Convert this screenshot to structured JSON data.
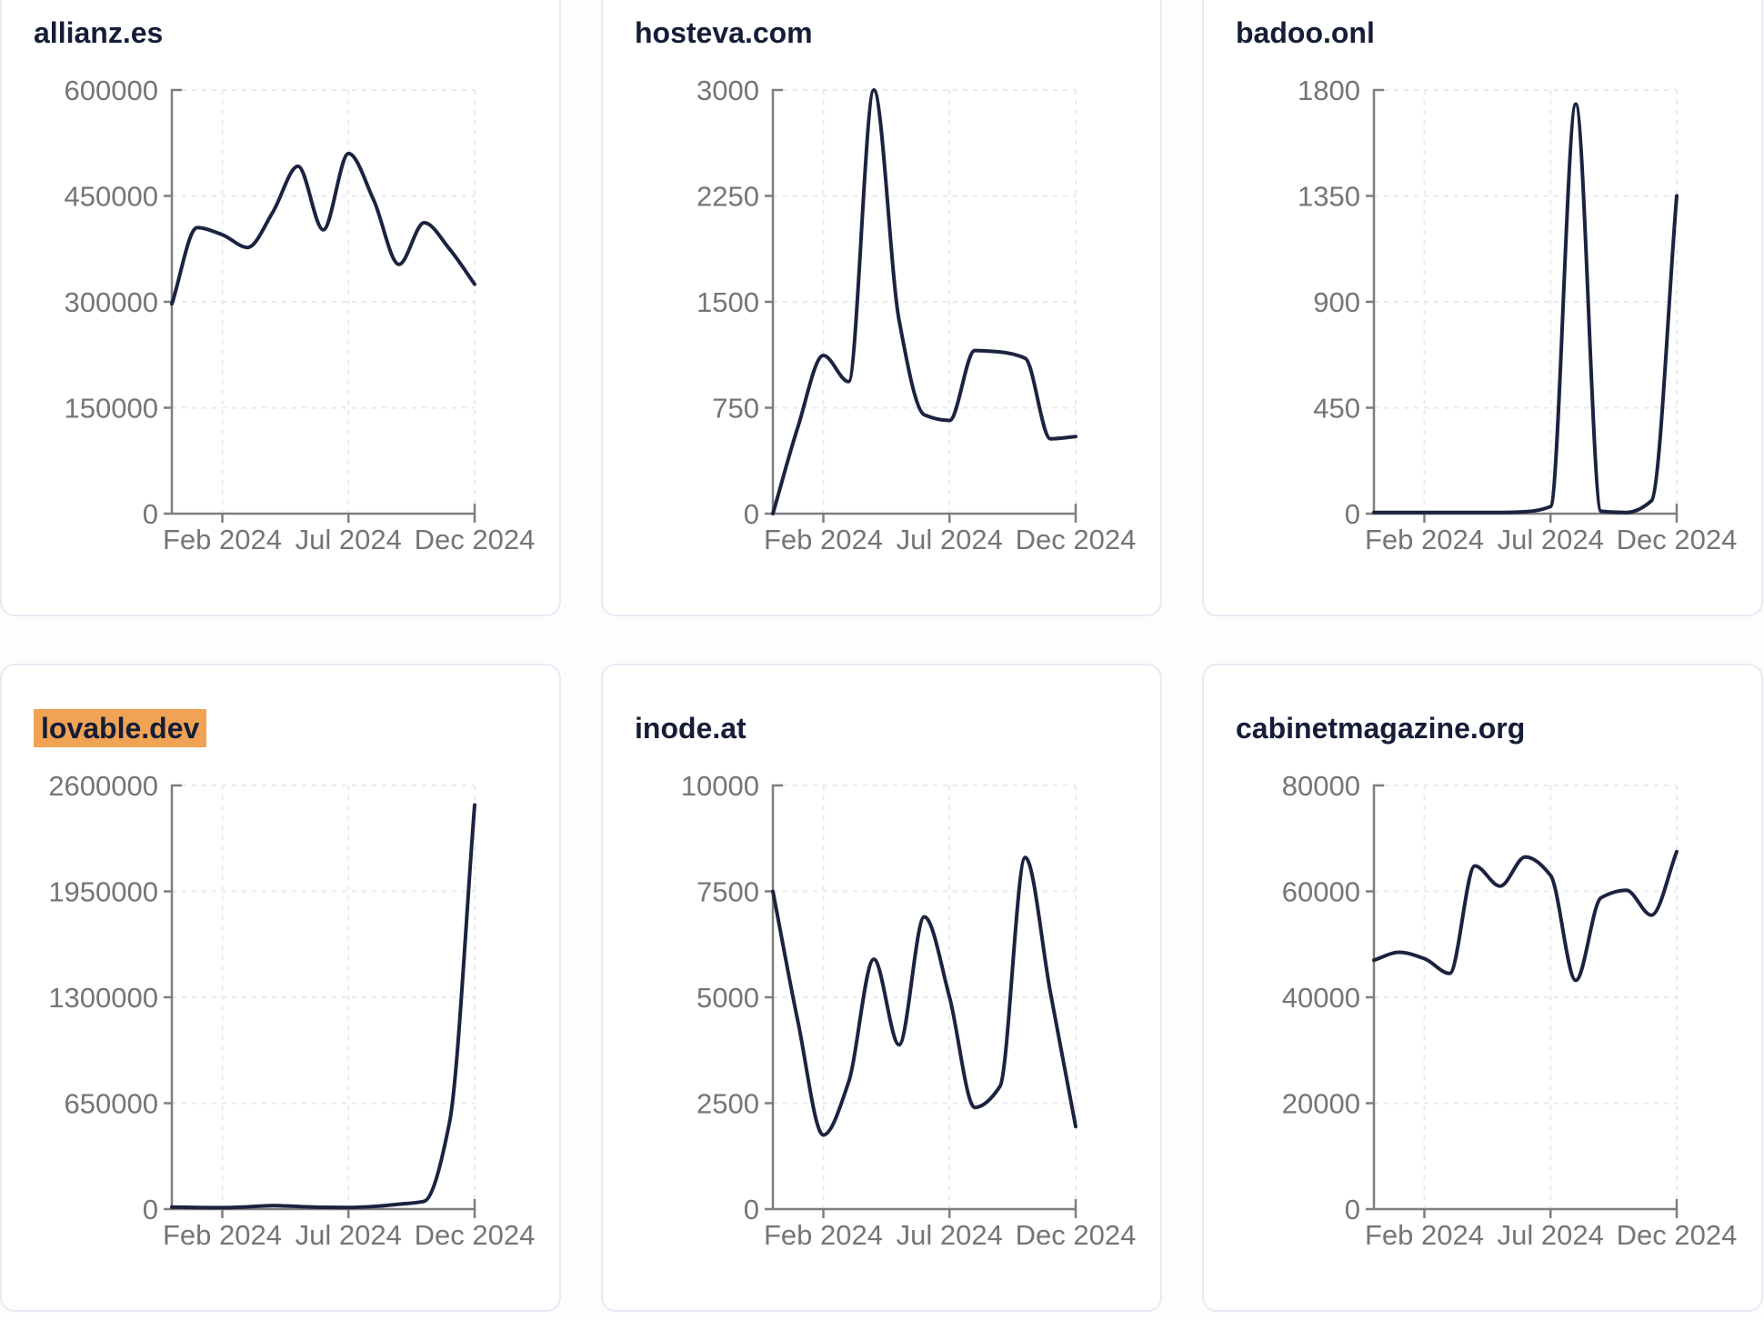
{
  "page": {
    "background": "#fdfdfe"
  },
  "style": {
    "card_background": "#ffffff",
    "card_border": "#eae9f4",
    "title_color": "#151d38",
    "highlight_color": "#f0a355",
    "line_color": "#1c2340",
    "axis_color": "#7e7e7e",
    "tick_label_color": "#757575",
    "grid_color": "#e9e9ee"
  },
  "chart_data": [
    {
      "type": "line",
      "title": "allianz.es",
      "highlighted": false,
      "x": [
        "Dec 2023",
        "Jan 2024",
        "Feb 2024",
        "Mar 2024",
        "Apr 2024",
        "May 2024",
        "Jun 2024",
        "Jul 2024",
        "Aug 2024",
        "Sep 2024",
        "Oct 2024",
        "Nov 2024",
        "Dec 2024"
      ],
      "values": [
        297000,
        405000,
        395000,
        377000,
        427000,
        492000,
        402000,
        510000,
        444000,
        353000,
        412000,
        375000,
        325000
      ],
      "ylim": [
        0,
        600000
      ],
      "y_ticks": [
        0,
        150000,
        300000,
        450000,
        600000
      ],
      "x_ticks": [
        {
          "label": "Feb 2024",
          "index": 2
        },
        {
          "label": "Jul 2024",
          "index": 7
        },
        {
          "label": "Dec 2024",
          "index": 12
        }
      ],
      "grid": true,
      "legend": null
    },
    {
      "type": "line",
      "title": "hosteva.com",
      "highlighted": false,
      "x": [
        "Dec 2023",
        "Jan 2024",
        "Feb 2024",
        "Mar 2024",
        "Apr 2024",
        "May 2024",
        "Jun 2024",
        "Jul 2024",
        "Aug 2024",
        "Sep 2024",
        "Oct 2024",
        "Nov 2024",
        "Dec 2024"
      ],
      "values": [
        0,
        620,
        1120,
        935,
        3000,
        1370,
        700,
        660,
        1155,
        1145,
        1100,
        530,
        545
      ],
      "ylim": [
        0,
        3000
      ],
      "y_ticks": [
        0,
        750,
        1500,
        2250,
        3000
      ],
      "x_ticks": [
        {
          "label": "Feb 2024",
          "index": 2
        },
        {
          "label": "Jul 2024",
          "index": 7
        },
        {
          "label": "Dec 2024",
          "index": 12
        }
      ],
      "grid": true,
      "legend": null
    },
    {
      "type": "line",
      "title": "badoo.onl",
      "highlighted": false,
      "x": [
        "Dec 2023",
        "Jan 2024",
        "Feb 2024",
        "Mar 2024",
        "Apr 2024",
        "May 2024",
        "Jun 2024",
        "Jul 2024",
        "Aug 2024",
        "Sep 2024",
        "Oct 2024",
        "Nov 2024",
        "Dec 2024"
      ],
      "values": [
        5,
        5,
        5,
        5,
        5,
        5,
        8,
        30,
        1740,
        10,
        5,
        55,
        1350
      ],
      "ylim": [
        0,
        1800
      ],
      "y_ticks": [
        0,
        450,
        900,
        1350,
        1800
      ],
      "x_ticks": [
        {
          "label": "Feb 2024",
          "index": 2
        },
        {
          "label": "Jul 2024",
          "index": 7
        },
        {
          "label": "Dec 2024",
          "index": 12
        }
      ],
      "grid": true,
      "legend": null
    },
    {
      "type": "line",
      "title": "lovable.dev",
      "highlighted": true,
      "x": [
        "Dec 2023",
        "Jan 2024",
        "Feb 2024",
        "Mar 2024",
        "Apr 2024",
        "May 2024",
        "Jun 2024",
        "Jul 2024",
        "Aug 2024",
        "Sep 2024",
        "Oct 2024",
        "Nov 2024",
        "Dec 2024"
      ],
      "values": [
        12000,
        10000,
        9000,
        14000,
        22000,
        16000,
        11000,
        10000,
        16000,
        30000,
        48000,
        530000,
        2480000
      ],
      "ylim": [
        0,
        2600000
      ],
      "y_ticks": [
        0,
        650000,
        1300000,
        1950000,
        2600000
      ],
      "x_ticks": [
        {
          "label": "Feb 2024",
          "index": 2
        },
        {
          "label": "Jul 2024",
          "index": 7
        },
        {
          "label": "Dec 2024",
          "index": 12
        }
      ],
      "grid": true,
      "legend": null
    },
    {
      "type": "line",
      "title": "inode.at",
      "highlighted": false,
      "x": [
        "Dec 2023",
        "Jan 2024",
        "Feb 2024",
        "Mar 2024",
        "Apr 2024",
        "May 2024",
        "Jun 2024",
        "Jul 2024",
        "Aug 2024",
        "Sep 2024",
        "Oct 2024",
        "Nov 2024",
        "Dec 2024"
      ],
      "values": [
        7500,
        4400,
        1750,
        3000,
        5900,
        3880,
        6900,
        5000,
        2400,
        2900,
        8300,
        5100,
        1950
      ],
      "ylim": [
        0,
        10000
      ],
      "y_ticks": [
        0,
        2500,
        5000,
        7500,
        10000
      ],
      "x_ticks": [
        {
          "label": "Feb 2024",
          "index": 2
        },
        {
          "label": "Jul 2024",
          "index": 7
        },
        {
          "label": "Dec 2024",
          "index": 12
        }
      ],
      "grid": true,
      "legend": null
    },
    {
      "type": "line",
      "title": "cabinetmagazine.org",
      "highlighted": false,
      "x": [
        "Dec 2023",
        "Jan 2024",
        "Feb 2024",
        "Mar 2024",
        "Apr 2024",
        "May 2024",
        "Jun 2024",
        "Jul 2024",
        "Aug 2024",
        "Sep 2024",
        "Oct 2024",
        "Nov 2024",
        "Dec 2024"
      ],
      "values": [
        47000,
        48500,
        47300,
        44500,
        64800,
        61000,
        66500,
        63000,
        43200,
        58800,
        60200,
        55500,
        67500
      ],
      "ylim": [
        0,
        80000
      ],
      "y_ticks": [
        0,
        20000,
        40000,
        60000,
        80000
      ],
      "x_ticks": [
        {
          "label": "Feb 2024",
          "index": 2
        },
        {
          "label": "Jul 2024",
          "index": 7
        },
        {
          "label": "Dec 2024",
          "index": 12
        }
      ],
      "grid": true,
      "legend": null
    }
  ]
}
